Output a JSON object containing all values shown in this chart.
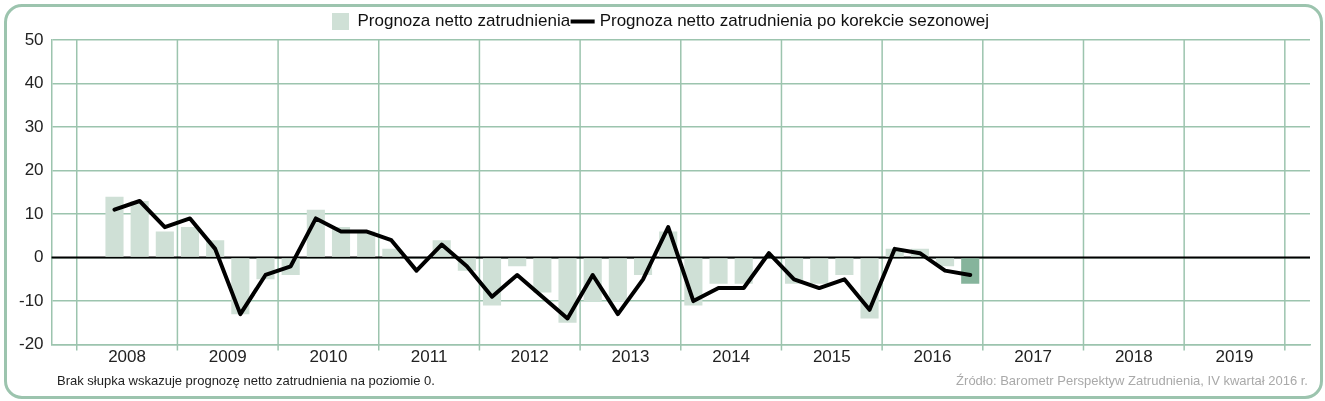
{
  "chart_data": {
    "type": "bar",
    "x": [
      2008.375,
      2008.625,
      2008.875,
      2009.125,
      2009.375,
      2009.625,
      2009.875,
      2010.125,
      2010.375,
      2010.625,
      2010.875,
      2011.125,
      2011.375,
      2011.625,
      2011.875,
      2012.125,
      2012.375,
      2012.625,
      2012.875,
      2013.125,
      2013.375,
      2013.625,
      2013.875,
      2014.125,
      2014.375,
      2014.625,
      2014.875,
      2015.125,
      2015.375,
      2015.625,
      2015.875,
      2016.125,
      2016.375,
      2016.625,
      2016.875
    ],
    "series": [
      {
        "name": "Prognoza netto zatrudnienia",
        "color": "#cfe0d6",
        "colors": [
          "#cfe0d6",
          "#cfe0d6",
          "#cfe0d6",
          "#cfe0d6",
          "#cfe0d6",
          "#cfe0d6",
          "#cfe0d6",
          "#cfe0d6",
          "#cfe0d6",
          "#cfe0d6",
          "#cfe0d6",
          "#cfe0d6",
          "#cfe0d6",
          "#cfe0d6",
          "#cfe0d6",
          "#cfe0d6",
          "#cfe0d6",
          "#cfe0d6",
          "#cfe0d6",
          "#cfe0d6",
          "#cfe0d6",
          "#cfe0d6",
          "#cfe0d6",
          "#cfe0d6",
          "#cfe0d6",
          "#cfe0d6",
          "#cfe0d6",
          "#cfe0d6",
          "#cfe0d6",
          "#cfe0d6",
          "#cfe0d6",
          "#cfe0d6",
          "#cfe0d6",
          "#cfe0d6",
          "#86b49c"
        ],
        "values": [
          14,
          13,
          6,
          7,
          4,
          -13,
          -5,
          -4,
          11,
          7,
          6,
          2,
          0,
          4,
          -3,
          -11,
          -2,
          -8,
          -15,
          -10,
          -10,
          -4,
          6,
          -11,
          -6,
          -6,
          0,
          -6,
          -6,
          -4,
          -14,
          2,
          2,
          -2,
          -6
        ]
      },
      {
        "name": "Prognoza netto zatrudnienia po korekcie sezonowej",
        "type": "line",
        "color": "#000000",
        "values": [
          11,
          13,
          7,
          9,
          2,
          -13,
          -4,
          -2,
          9,
          6,
          6,
          4,
          -3,
          3,
          -2,
          -9,
          -4,
          -9,
          -14,
          -4,
          -13,
          -5,
          7,
          -10,
          -7,
          -7,
          1,
          -5,
          -7,
          -5,
          -12,
          2,
          1,
          -3,
          -4
        ]
      }
    ],
    "xlim": [
      2008,
      2020
    ],
    "xticks": [
      {
        "value": 2008,
        "label": null
      },
      {
        "value": 2008.5,
        "label": "2008"
      },
      {
        "value": 2009,
        "label": null
      },
      {
        "value": 2009.5,
        "label": "2009"
      },
      {
        "value": 2010,
        "label": null
      },
      {
        "value": 2010.5,
        "label": "2010"
      },
      {
        "value": 2011,
        "label": null
      },
      {
        "value": 2011.5,
        "label": "2011"
      },
      {
        "value": 2012,
        "label": null
      },
      {
        "value": 2012.5,
        "label": "2012"
      },
      {
        "value": 2013,
        "label": null
      },
      {
        "value": 2013.5,
        "label": "2013"
      },
      {
        "value": 2014,
        "label": null
      },
      {
        "value": 2014.5,
        "label": "2014"
      },
      {
        "value": 2015,
        "label": null
      },
      {
        "value": 2015.5,
        "label": "2015"
      },
      {
        "value": 2016,
        "label": null
      },
      {
        "value": 2016.5,
        "label": "2016"
      },
      {
        "value": 2017,
        "label": null
      },
      {
        "value": 2017.5,
        "label": "2017"
      },
      {
        "value": 2018,
        "label": null
      },
      {
        "value": 2018.5,
        "label": "2018"
      },
      {
        "value": 2019,
        "label": null
      },
      {
        "value": 2019.5,
        "label": "2019"
      },
      {
        "value": 2020,
        "label": null
      }
    ],
    "ylim": [
      -20,
      50
    ],
    "yticks": [
      -20,
      -10,
      0,
      10,
      20,
      30,
      40,
      50
    ],
    "grid": true,
    "legend": "top",
    "marker": "none",
    "line_style": "solid",
    "ref_lines": [
      {
        "axis": "y",
        "value": 0,
        "color": "#000000"
      }
    ],
    "annotations": [
      "Brak słupka wskazuje prognozę netto zatrudnienia na poziomie 0.",
      "Źródło: Barometr Perspektyw Zatrudnienia, IV kwartał 2016 r."
    ]
  }
}
